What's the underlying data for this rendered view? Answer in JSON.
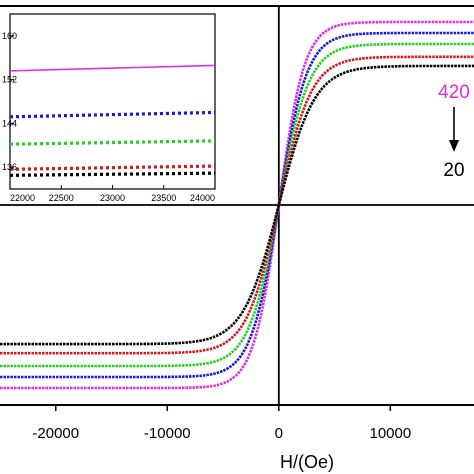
{
  "chart_data": [
    {
      "type": "scatter",
      "title": "",
      "xlabel": "H/(Oe)",
      "ylabel": "",
      "xlim": [
        -25000,
        17500
      ],
      "x_ticks": [
        -20000,
        -10000,
        0,
        10000
      ],
      "x_tick_labels": [
        "-20000",
        "-10000",
        "0",
        "10000"
      ],
      "grid": false,
      "annotation": {
        "top_label": "420",
        "bottom_label": "20",
        "top_color": "#e22ce2",
        "bottom_color": "#000000",
        "arrow": "down"
      },
      "series": [
        {
          "color": "#e22ce2",
          "values": [
            -1.0
          ]
        },
        {
          "color": "#1a1ad6",
          "values": [
            -0.94
          ]
        },
        {
          "color": "#22d322",
          "values": [
            -0.88
          ]
        },
        {
          "color": "#d41a1a",
          "values": [
            -0.81
          ]
        },
        {
          "color": "#000000",
          "values": [
            -0.76
          ]
        }
      ]
    },
    {
      "type": "scatter",
      "title": "",
      "xlabel": "",
      "ylabel": "",
      "xlim": [
        22000,
        24000
      ],
      "ylim": [
        132,
        164
      ],
      "x_ticks": [
        22000,
        22500,
        23000,
        23500,
        24000
      ],
      "x_tick_labels": [
        "22000",
        "22500",
        "23000",
        "23500",
        "24000"
      ],
      "y_ticks": [
        136,
        144,
        152,
        160
      ],
      "y_tick_labels": [
        "136",
        "144",
        "152",
        "160"
      ],
      "series": [
        {
          "color": "#e22ce2",
          "values": [
            153.6,
            154.6
          ]
        },
        {
          "color": "#1a1ad6",
          "values": [
            145.2,
            146.0
          ]
        },
        {
          "color": "#22d322",
          "values": [
            140.2,
            140.8
          ]
        },
        {
          "color": "#d41a1a",
          "values": [
            135.6,
            136.2
          ]
        },
        {
          "color": "#000000",
          "values": [
            134.5,
            134.9
          ]
        }
      ]
    }
  ]
}
